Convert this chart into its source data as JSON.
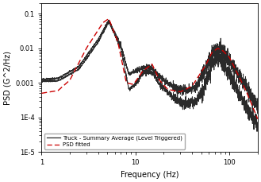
{
  "title": "",
  "xlabel": "Frequency (Hz)",
  "ylabel": "PSD (G^2/Hz)",
  "xlim": [
    1,
    200
  ],
  "ylim": [
    1e-05,
    0.2
  ],
  "legend": [
    "Truck - Summary Average (Level Triggered)",
    "PSD fitted"
  ],
  "line1_color": "#2a2a2a",
  "line2_color": "#cc0000",
  "background_color": "#ffffff"
}
